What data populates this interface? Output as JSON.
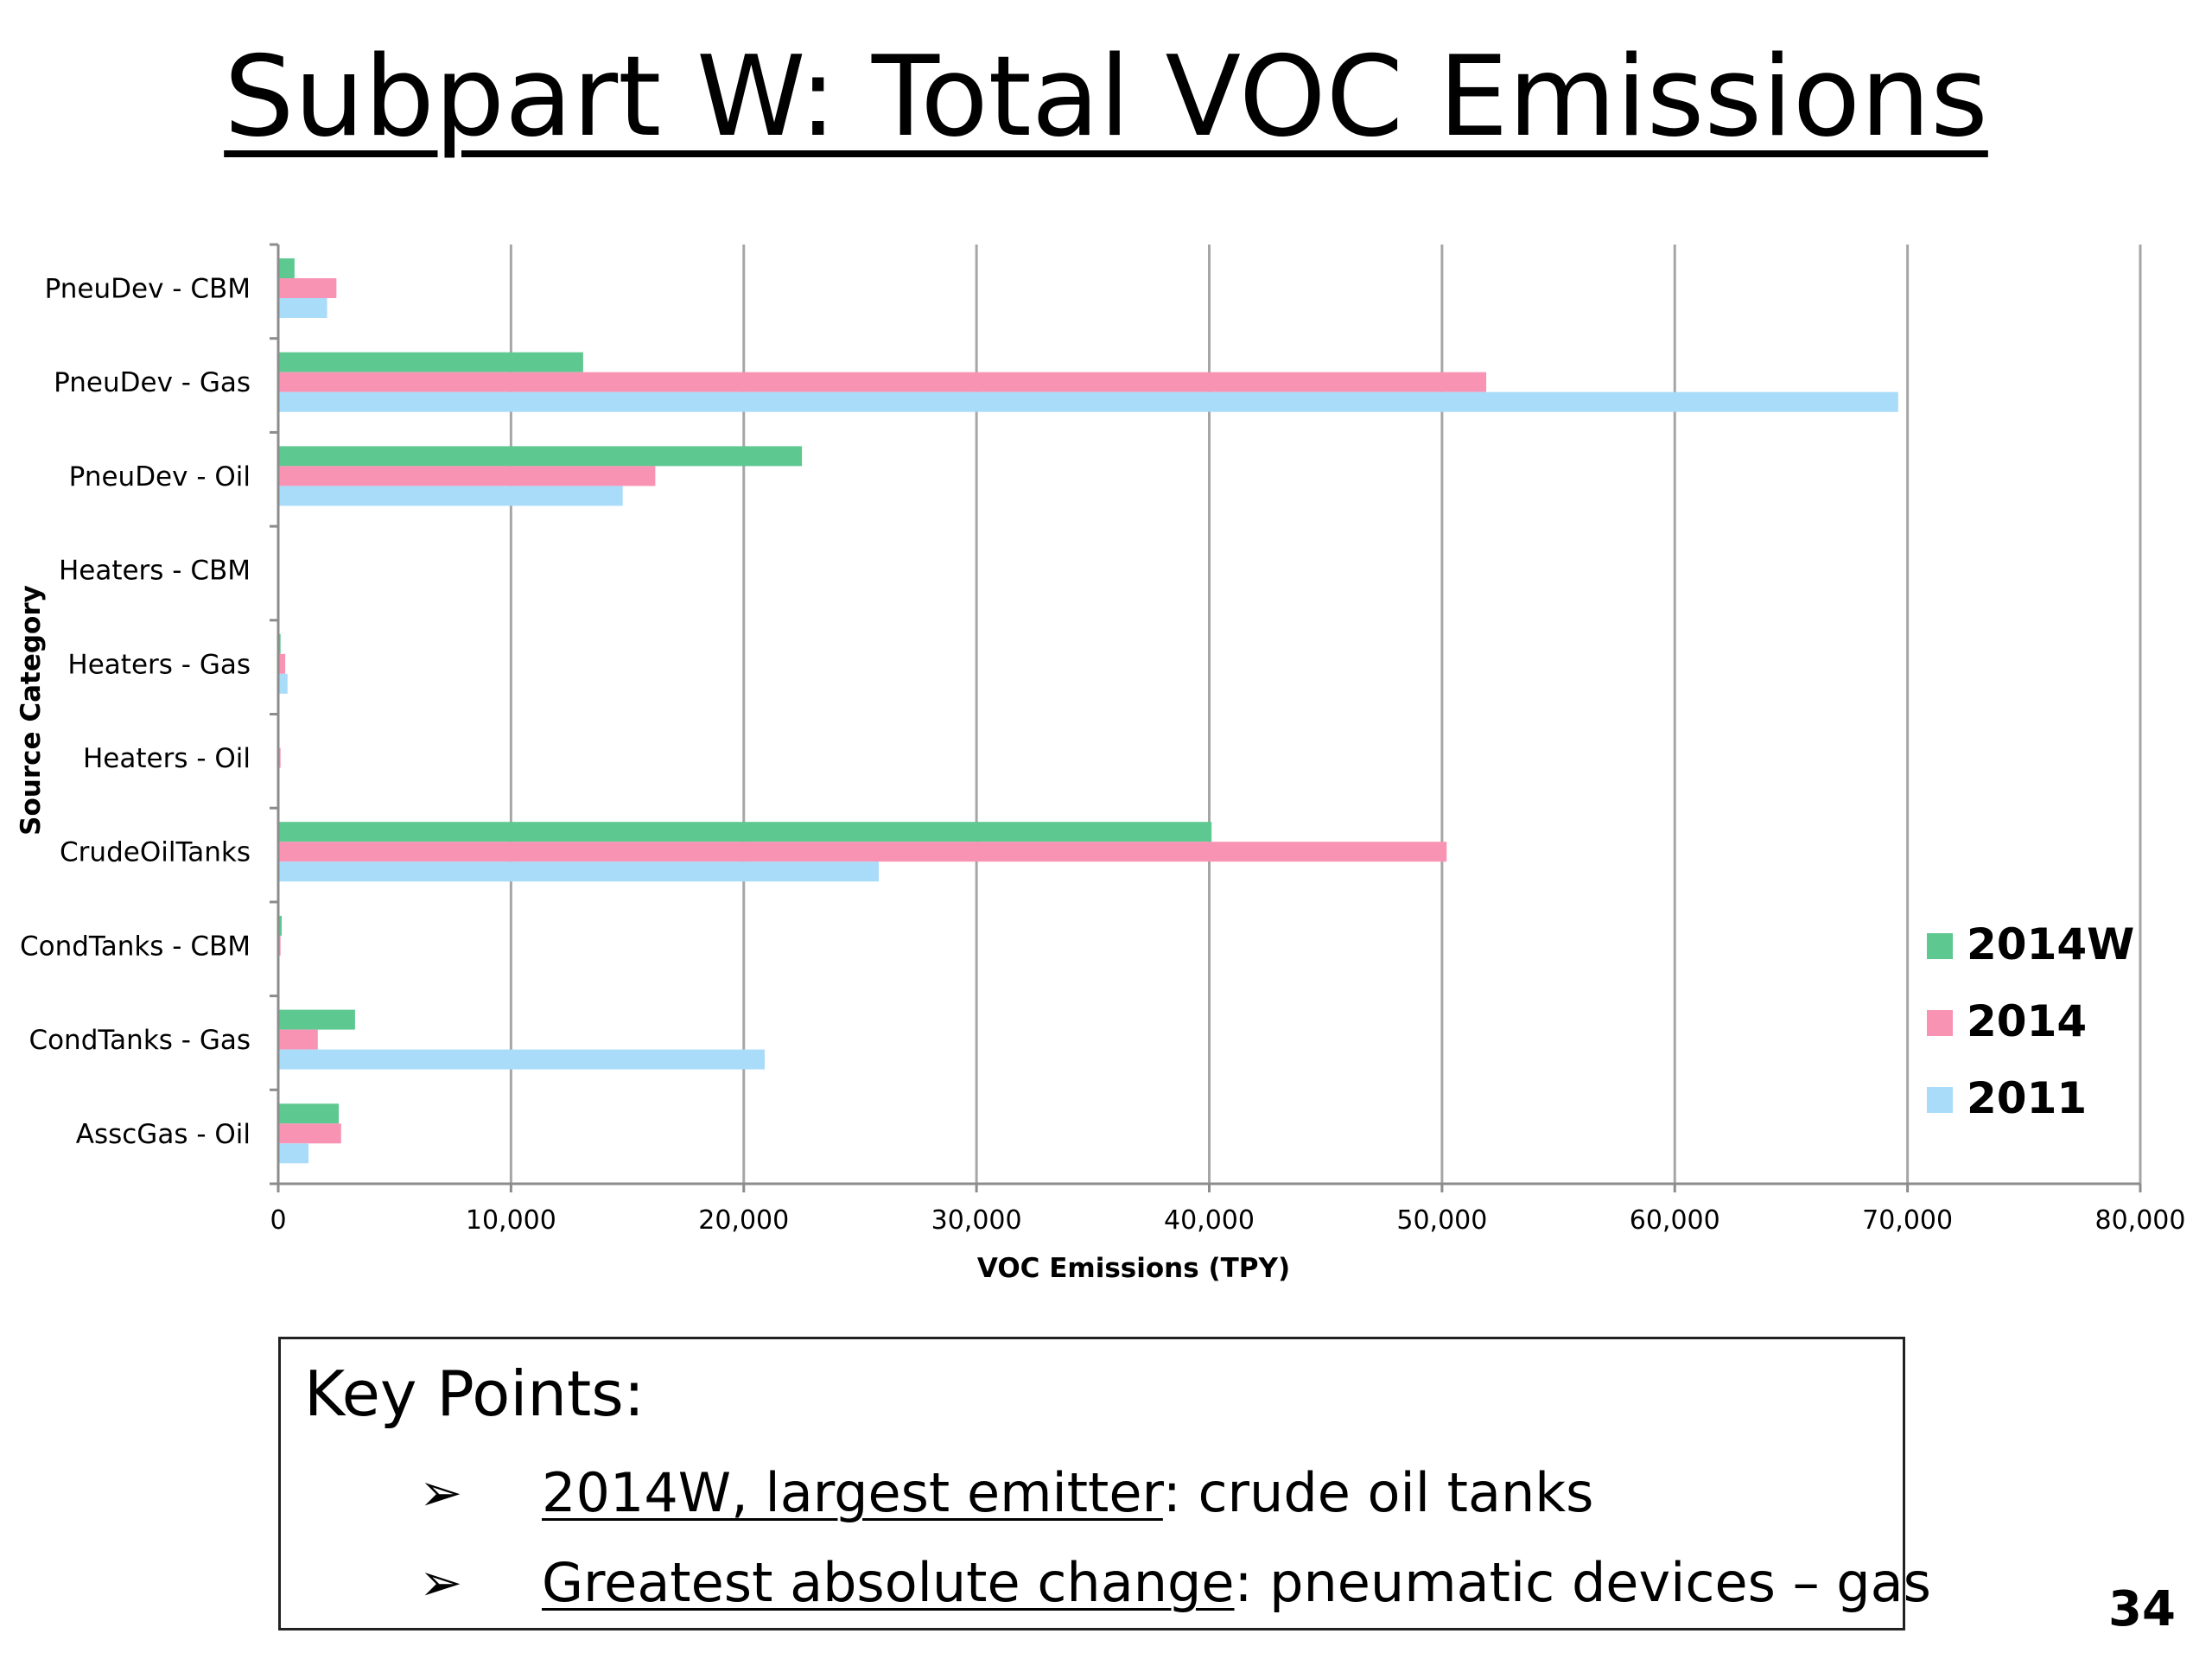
{
  "slide": {
    "title": "Subpart W: Total VOC Emissions",
    "page_number": "34"
  },
  "chart_data": {
    "type": "bar",
    "orientation": "horizontal",
    "title": "",
    "xlabel": "VOC Emissions (TPY)",
    "ylabel": "Source Category",
    "xlim": [
      0,
      80000
    ],
    "x_ticks": [
      "0",
      "10,000",
      "20,000",
      "30,000",
      "40,000",
      "50,000",
      "60,000",
      "70,000",
      "80,000"
    ],
    "x_tick_values": [
      0,
      10000,
      20000,
      30000,
      40000,
      50000,
      60000,
      70000,
      80000
    ],
    "grid": "vertical",
    "legend_position": "right",
    "categories": [
      "PneuDev - CBM",
      "PneuDev - Gas",
      "PneuDev - Oil",
      "Heaters - CBM",
      "Heaters - Gas",
      "Heaters - Oil",
      "CrudeOilTanks",
      "CondTanks - CBM",
      "CondTanks - Gas",
      "AsscGas - Oil"
    ],
    "series": [
      {
        "name": "2014W",
        "color": "#5ec891",
        "values": [
          700,
          13100,
          22500,
          0,
          100,
          0,
          40100,
          150,
          3300,
          2600
        ]
      },
      {
        "name": "2014",
        "color": "#f993b4",
        "values": [
          2500,
          51900,
          16200,
          0,
          300,
          100,
          50200,
          100,
          1700,
          2700
        ]
      },
      {
        "name": "2011",
        "color": "#a9dcf9",
        "values": [
          2100,
          69600,
          14800,
          0,
          400,
          50,
          25800,
          50,
          20900,
          1300
        ]
      }
    ]
  },
  "key_points": {
    "heading": "Key Points:",
    "bullet_glyph": "➢",
    "items": [
      {
        "lead": "2014W, largest emitter",
        "rest": ": crude oil tanks"
      },
      {
        "lead": "Greatest absolute change",
        "rest": ": pneumatic devices – gas"
      }
    ]
  }
}
